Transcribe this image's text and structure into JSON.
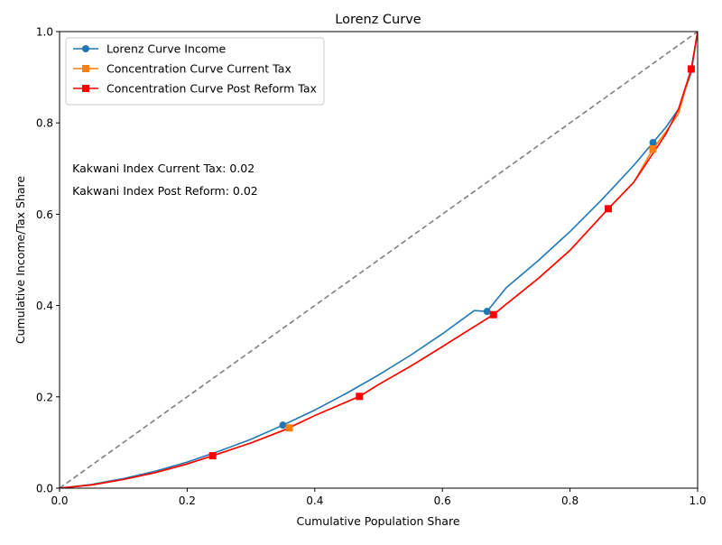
{
  "chart_data": {
    "type": "line",
    "title": "Lorenz Curve",
    "xlabel": "Cumulative Population Share",
    "ylabel": "Cumulative Income/Tax Share",
    "xlim": [
      0,
      1
    ],
    "ylim": [
      0,
      1
    ],
    "x_ticks": [
      "0.0",
      "0.2",
      "0.4",
      "0.6",
      "0.8",
      "1.0"
    ],
    "y_ticks": [
      "0.0",
      "0.2",
      "0.4",
      "0.6",
      "0.8",
      "1.0"
    ],
    "grid": false,
    "legend_position": "upper-left",
    "equality_line": {
      "x": [
        0,
        1
      ],
      "y": [
        0,
        1
      ],
      "color": "#808080",
      "style": "dashed"
    },
    "series": [
      {
        "name": "Lorenz Curve Income",
        "color": "#1f77b4",
        "marker": "circle",
        "x": [
          0.0,
          0.05,
          0.1,
          0.15,
          0.2,
          0.25,
          0.3,
          0.35,
          0.4,
          0.45,
          0.5,
          0.55,
          0.6,
          0.65,
          0.67,
          0.7,
          0.75,
          0.8,
          0.85,
          0.9,
          0.93,
          0.95,
          0.97,
          0.99,
          1.0
        ],
        "y": [
          0.0,
          0.008,
          0.021,
          0.037,
          0.057,
          0.081,
          0.107,
          0.138,
          0.171,
          0.208,
          0.248,
          0.291,
          0.338,
          0.389,
          0.387,
          0.439,
          0.498,
          0.562,
          0.632,
          0.707,
          0.757,
          0.79,
          0.83,
          0.91,
          1.0
        ],
        "marker_points": [
          {
            "x": 0.35,
            "y": 0.138
          },
          {
            "x": 0.67,
            "y": 0.387
          },
          {
            "x": 0.93,
            "y": 0.757
          }
        ]
      },
      {
        "name": "Concentration Curve Current Tax",
        "color": "#ff7f0e",
        "marker": "square",
        "x": [
          0.0,
          0.05,
          0.1,
          0.15,
          0.2,
          0.24,
          0.3,
          0.36,
          0.4,
          0.47,
          0.5,
          0.55,
          0.6,
          0.68,
          0.7,
          0.75,
          0.8,
          0.86,
          0.9,
          0.93,
          0.95,
          0.97,
          0.99,
          1.0
        ],
        "y": [
          0.0,
          0.007,
          0.019,
          0.034,
          0.053,
          0.071,
          0.099,
          0.132,
          0.159,
          0.201,
          0.227,
          0.267,
          0.31,
          0.38,
          0.403,
          0.459,
          0.521,
          0.612,
          0.67,
          0.743,
          0.78,
          0.82,
          0.918,
          1.0
        ],
        "marker_points": [
          {
            "x": 0.36,
            "y": 0.132
          },
          {
            "x": 0.93,
            "y": 0.743
          }
        ]
      },
      {
        "name": "Concentration Curve Post Reform Tax",
        "color": "#ff0000",
        "marker": "square",
        "x": [
          0.0,
          0.05,
          0.1,
          0.15,
          0.2,
          0.24,
          0.3,
          0.35,
          0.4,
          0.47,
          0.5,
          0.55,
          0.6,
          0.68,
          0.7,
          0.75,
          0.8,
          0.86,
          0.9,
          0.95,
          0.97,
          0.99,
          1.0
        ],
        "y": [
          0.0,
          0.007,
          0.019,
          0.034,
          0.053,
          0.071,
          0.099,
          0.126,
          0.159,
          0.201,
          0.227,
          0.267,
          0.31,
          0.38,
          0.403,
          0.459,
          0.521,
          0.612,
          0.67,
          0.775,
          0.83,
          0.918,
          1.0
        ],
        "marker_points": [
          {
            "x": 0.24,
            "y": 0.071
          },
          {
            "x": 0.47,
            "y": 0.201
          },
          {
            "x": 0.68,
            "y": 0.38
          },
          {
            "x": 0.86,
            "y": 0.612
          },
          {
            "x": 0.99,
            "y": 0.918
          }
        ]
      }
    ],
    "annotations": [
      {
        "text": "Kakwani Index Current Tax:  0.02",
        "x": 0.02,
        "y": 0.7
      },
      {
        "text": "Kakwani Index Post Reform:  0.02",
        "x": 0.02,
        "y": 0.65
      }
    ]
  }
}
